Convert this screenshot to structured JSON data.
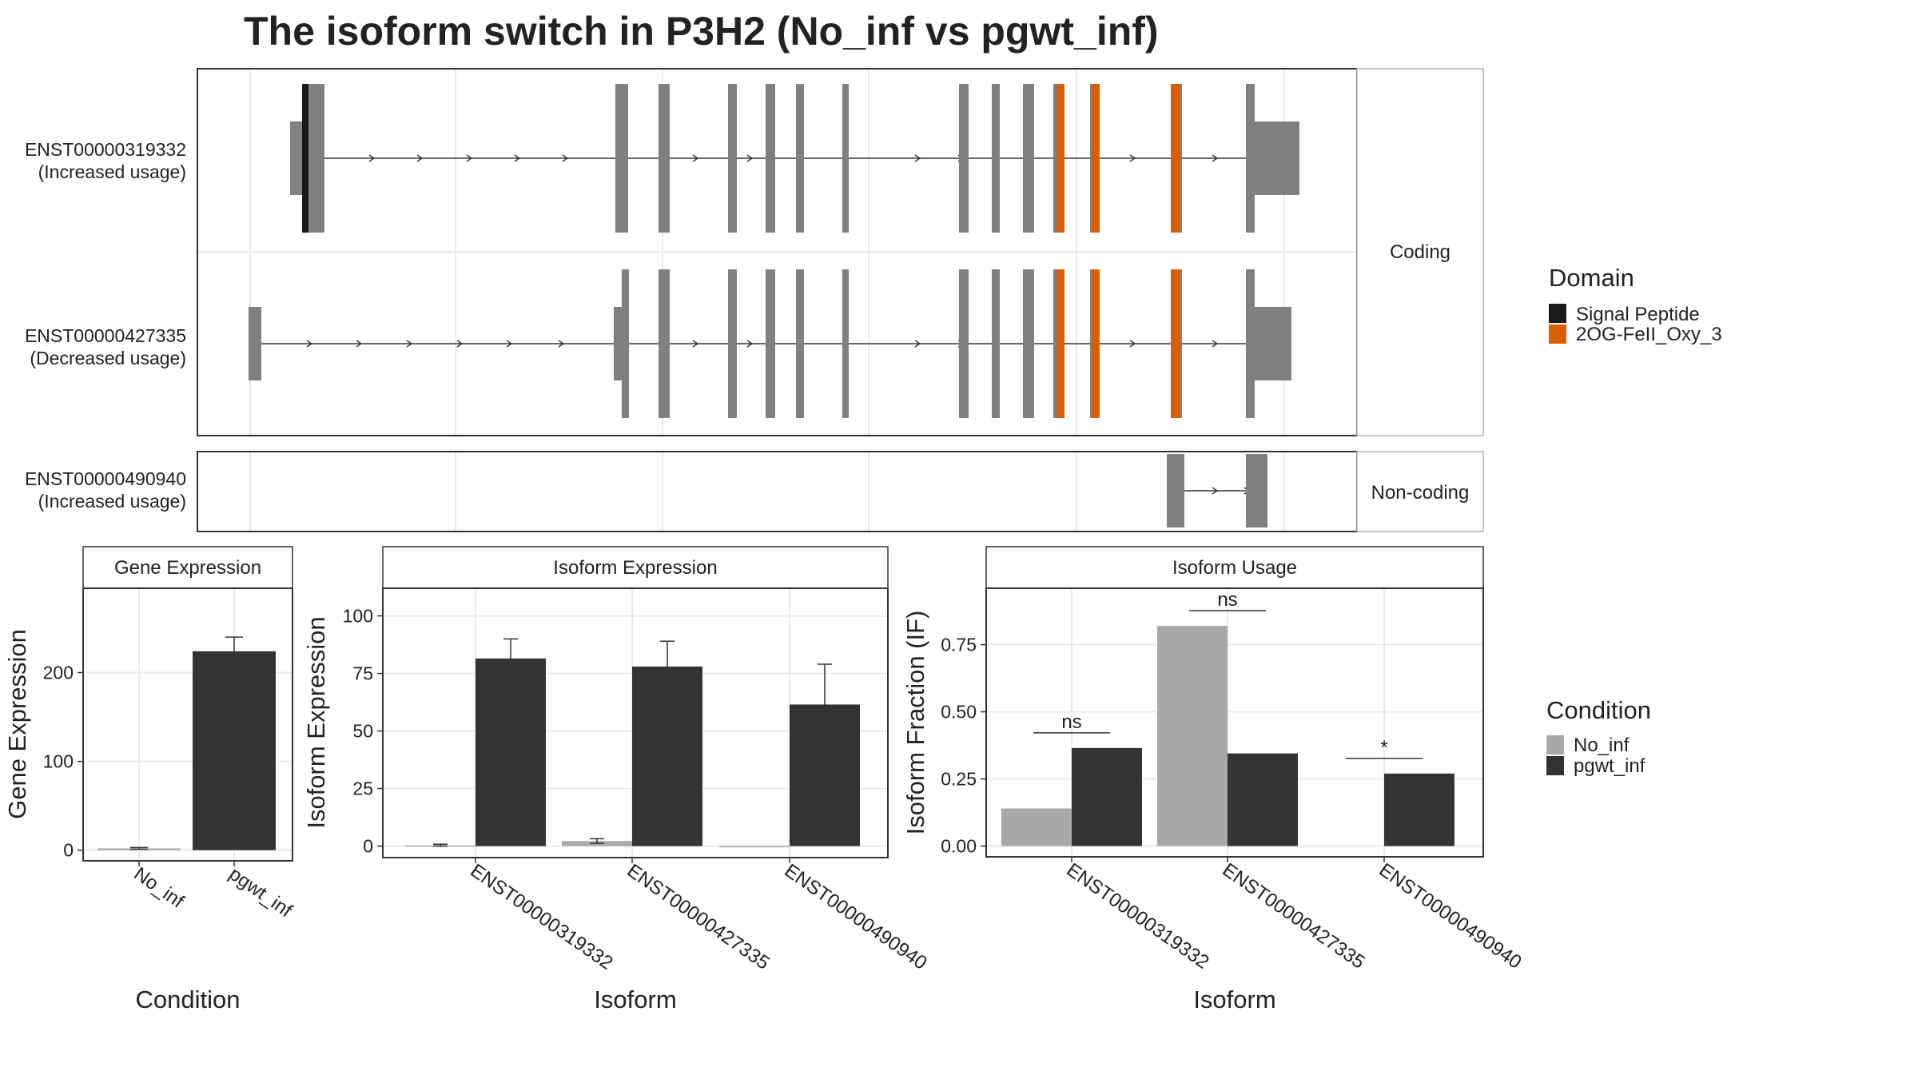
{
  "title": "The isoform switch in P3H2 (No_inf vs pgwt_inf)",
  "colors": {
    "exon": "#808080",
    "signal_peptide": "#1a1a1a",
    "domain_2og": "#d95f02",
    "no_inf": "#a9a9a9",
    "pgwt_inf": "#333333",
    "grid": "#ebebeb",
    "panel_border": "#333333",
    "strip_border": "#b3b3b3"
  },
  "structure": {
    "facets": [
      {
        "label": "Coding",
        "isoforms": [
          {
            "id": "ENST00000319332",
            "usage": "(Increased usage)"
          },
          {
            "id": "ENST00000427335",
            "usage": "(Decreased usage)"
          }
        ]
      },
      {
        "label": "Non-coding",
        "isoforms": [
          {
            "id": "ENST00000490940",
            "usage": "(Increased usage)"
          }
        ]
      }
    ]
  },
  "legends": {
    "domain": {
      "title": "Domain",
      "items": [
        {
          "label": "Signal Peptide",
          "color": "#1a1a1a"
        },
        {
          "label": "2OG-FeII_Oxy_3",
          "color": "#d95f02"
        }
      ]
    },
    "condition": {
      "title": "Condition",
      "items": [
        {
          "label": "No_inf",
          "color": "#a9a9a9"
        },
        {
          "label": "pgwt_inf",
          "color": "#333333"
        }
      ]
    }
  },
  "chart_data": [
    {
      "type": "bar",
      "title": "Gene Expression",
      "xlabel": "Condition",
      "ylabel": "Gene Expression",
      "categories": [
        "No_inf",
        "pgwt_inf"
      ],
      "values": [
        2,
        224
      ],
      "error_low": [
        1,
        209
      ],
      "error_high": [
        3,
        240
      ],
      "ylim": [
        -12,
        295
      ],
      "yticks": [
        0,
        100,
        200
      ]
    },
    {
      "type": "bar",
      "title": "Isoform Expression",
      "xlabel": "Isoform",
      "ylabel": "Isoform Expression",
      "categories": [
        "ENST00000319332",
        "ENST00000427335",
        "ENST00000490940"
      ],
      "series": [
        {
          "name": "No_inf",
          "values": [
            0.3,
            2.2,
            0
          ],
          "error_low": [
            0,
            1.2,
            0
          ],
          "error_high": [
            0.8,
            3.2,
            0
          ]
        },
        {
          "name": "pgwt_inf",
          "values": [
            81.5,
            78,
            61.5
          ],
          "error_low": [
            73,
            67,
            44
          ],
          "error_high": [
            90,
            89,
            79
          ]
        }
      ],
      "ylim": [
        -5,
        112
      ],
      "yticks": [
        0,
        25,
        50,
        75,
        100
      ]
    },
    {
      "type": "bar",
      "title": "Isoform Usage",
      "xlabel": "Isoform",
      "ylabel": "Isoform Fraction (IF)",
      "categories": [
        "ENST00000319332",
        "ENST00000427335",
        "ENST00000490940"
      ],
      "series": [
        {
          "name": "No_inf",
          "values": [
            0.14,
            0.82,
            0
          ]
        },
        {
          "name": "pgwt_inf",
          "values": [
            0.365,
            0.345,
            0.27
          ]
        }
      ],
      "significance": [
        "ns",
        "ns",
        "*"
      ],
      "ylim": [
        -0.04,
        0.96
      ],
      "yticks": [
        "0.00",
        "0.25",
        "0.50",
        "0.75"
      ]
    }
  ]
}
